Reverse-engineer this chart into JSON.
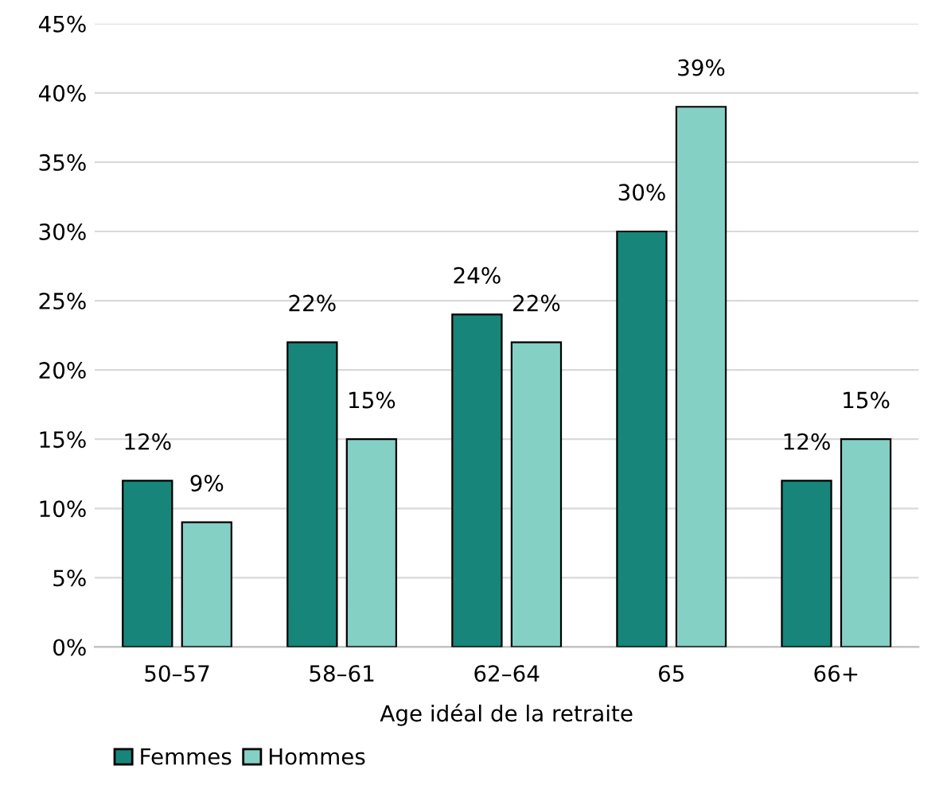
{
  "chart_data": {
    "type": "bar",
    "xlabel": "Age idéal de la retraite",
    "categories": [
      "50–57",
      "58–61",
      "62–64",
      "65",
      "66+"
    ],
    "series": [
      {
        "name": "Femmes",
        "color": "#17857a",
        "values": [
          12,
          22,
          24,
          30,
          12
        ],
        "value_labels": [
          "12%",
          "22%",
          "24%",
          "30%",
          "12%"
        ]
      },
      {
        "name": "Hommes",
        "color": "#85d0c5",
        "values": [
          9,
          15,
          22,
          39,
          15
        ],
        "value_labels": [
          "9%",
          "15%",
          "22%",
          "39%",
          "15%"
        ]
      }
    ],
    "ylim": [
      0,
      45
    ],
    "yticks": [
      {
        "value": 0,
        "label": "0%"
      },
      {
        "value": 5,
        "label": "5%"
      },
      {
        "value": 10,
        "label": "10%"
      },
      {
        "value": 15,
        "label": "15%"
      },
      {
        "value": 20,
        "label": "20%"
      },
      {
        "value": 25,
        "label": "25%"
      },
      {
        "value": 30,
        "label": "30%"
      },
      {
        "value": 35,
        "label": "35%"
      },
      {
        "value": 40,
        "label": "40%"
      },
      {
        "value": 45,
        "label": "45%"
      }
    ],
    "grid": "y",
    "legend": "bottom left"
  }
}
